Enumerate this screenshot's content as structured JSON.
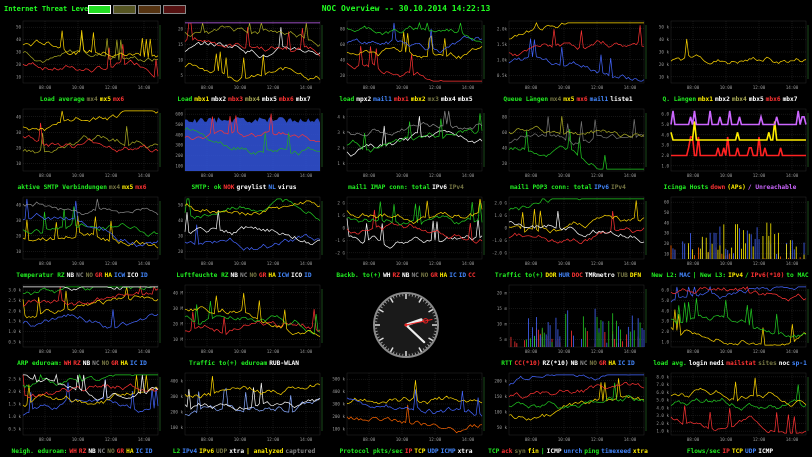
{
  "header": {
    "threat_label": "Internet Threat Level:",
    "threat_levels": [
      {
        "name": "low",
        "color": "#22dd22",
        "active": true
      },
      {
        "name": "elevated",
        "color": "#555522",
        "active": false
      },
      {
        "name": "high",
        "color": "#553311",
        "active": false
      },
      {
        "name": "severe",
        "color": "#551111",
        "active": false
      }
    ],
    "title": "NOC Overview -- 30.10.2014 14:22:13"
  },
  "time_ticks": [
    "08:00",
    "10:00",
    "12:00",
    "14:00"
  ],
  "panels": [
    {
      "id": "load-average",
      "type": "line",
      "y_ticks": [
        "50",
        "40",
        "30",
        "20",
        "10"
      ],
      "series_colors": [
        "#ff3333",
        "#aaaa22",
        "#ffd700"
      ],
      "caption": [
        {
          "t": "Load average",
          "c": "#22ee22"
        },
        {
          "t": "mx4",
          "c": "#777744"
        },
        {
          "t": "mx5",
          "c": "#ffee00"
        },
        {
          "t": "mx6",
          "c": "#ff3333"
        }
      ]
    },
    {
      "id": "load-mbx",
      "type": "line",
      "y_ticks": [
        "20",
        "15",
        "10",
        "5"
      ],
      "series_colors": [
        "#ffd700",
        "#ffffff",
        "#ff3333",
        "#aaaa22",
        "#cc66ff"
      ],
      "caption": [
        {
          "t": "Load",
          "c": "#22ee22"
        },
        {
          "t": "mbx1",
          "c": "#ffee00"
        },
        {
          "t": "mbx2",
          "c": "#ffffff"
        },
        {
          "t": "mbx3",
          "c": "#ff3333"
        },
        {
          "t": "mbx4",
          "c": "#aaaa55"
        },
        {
          "t": "mbx5",
          "c": "#ffffff"
        },
        {
          "t": "mbx6",
          "c": "#ff3333"
        },
        {
          "t": "mbx7",
          "c": "#ffffff"
        }
      ]
    },
    {
      "id": "load-mail",
      "type": "line",
      "y_ticks": [
        "80",
        "60",
        "40",
        "20"
      ],
      "series_colors": [
        "#ff3333",
        "#ffd700",
        "#4466ff",
        "#22cc22"
      ],
      "caption": [
        {
          "t": "load",
          "c": "#22ee22"
        },
        {
          "t": "mpx2",
          "c": "#ffffff"
        },
        {
          "t": "mail1",
          "c": "#4488ff"
        },
        {
          "t": "mbx1",
          "c": "#ff3333"
        },
        {
          "t": "mbx2",
          "c": "#ffee00"
        },
        {
          "t": "mx3",
          "c": "#777744"
        },
        {
          "t": "mbx4",
          "c": "#ffffff"
        },
        {
          "t": "mbx5",
          "c": "#ffffff"
        }
      ]
    },
    {
      "id": "queue-length",
      "type": "line",
      "y_ticks": [
        "2.0k",
        "1.5k",
        "1.0k",
        "0.5k"
      ],
      "series_colors": [
        "#4466ff",
        "#ff3333",
        "#ffd700"
      ],
      "caption": [
        {
          "t": "Queue Längen",
          "c": "#22ee22"
        },
        {
          "t": "mx4",
          "c": "#777744"
        },
        {
          "t": "mx5",
          "c": "#ffee00"
        },
        {
          "t": "mx6",
          "c": "#ff3333"
        },
        {
          "t": "mail1",
          "c": "#4488ff"
        },
        {
          "t": "liste1",
          "c": "#ffffff"
        }
      ]
    },
    {
      "id": "q-length-mbx",
      "type": "line",
      "y_ticks": [
        "50 k",
        "40 k",
        "30 k",
        "20 k",
        "10 k"
      ],
      "series_colors": [
        "#ffd700"
      ],
      "caption": [
        {
          "t": "Q. Längen",
          "c": "#22ee22"
        },
        {
          "t": "mbx1",
          "c": "#ffee00"
        },
        {
          "t": "mbx2",
          "c": "#ffffff"
        },
        {
          "t": "mbx4",
          "c": "#aaaa55"
        },
        {
          "t": "mbx5",
          "c": "#ffffff"
        },
        {
          "t": "mbx6",
          "c": "#ff3333"
        },
        {
          "t": "mbx7",
          "c": "#ffffff"
        }
      ]
    },
    {
      "id": "smtp-connections",
      "type": "line",
      "y_ticks": [
        "40",
        "30",
        "20",
        "10"
      ],
      "series_colors": [
        "#aaaa22",
        "#ff3333",
        "#ffd700"
      ],
      "caption": [
        {
          "t": "aktive SMTP Verbindungen",
          "c": "#22ee22"
        },
        {
          "t": "mx4",
          "c": "#777744"
        },
        {
          "t": "mx5",
          "c": "#ffee00"
        },
        {
          "t": "mx6",
          "c": "#ff3333"
        }
      ]
    },
    {
      "id": "smtp-status",
      "type": "area",
      "y_ticks": [
        "600",
        "500",
        "400",
        "300",
        "200",
        "100"
      ],
      "series_colors": [
        "#3355dd",
        "#ff3333",
        "#22aa22"
      ],
      "caption": [
        {
          "t": "SMTP: ok",
          "c": "#22ee22"
        },
        {
          "t": "NOK",
          "c": "#ff3333"
        },
        {
          "t": "greylist",
          "c": "#ffffff"
        },
        {
          "t": "NL",
          "c": "#4488ff"
        },
        {
          "t": "virus",
          "c": "#ffffff"
        }
      ]
    },
    {
      "id": "imap-conn",
      "type": "line",
      "y_ticks": [
        "4 k",
        "3 k",
        "2 k",
        "1 k"
      ],
      "series_colors": [
        "#ffffff",
        "#22cc22",
        "#888888"
      ],
      "caption": [
        {
          "t": "mail1 IMAP conn: total",
          "c": "#22ee22"
        },
        {
          "t": "IPv6",
          "c": "#ffffff"
        },
        {
          "t": "IPv4",
          "c": "#777744"
        }
      ]
    },
    {
      "id": "pop3-conn",
      "type": "line",
      "y_ticks": [
        "80",
        "60",
        "40",
        "20"
      ],
      "series_colors": [
        "#22cc22",
        "#777777",
        "#aaaa22"
      ],
      "caption": [
        {
          "t": "mail1 POP3 conn: total",
          "c": "#22ee22"
        },
        {
          "t": "IPv6",
          "c": "#4488ff"
        },
        {
          "t": "IPv4",
          "c": "#777744"
        }
      ]
    },
    {
      "id": "icinga-hosts",
      "type": "step",
      "y_ticks": [
        "6.0",
        "5.0",
        "4.0",
        "3.0",
        "2.0",
        "1.0"
      ],
      "series_colors": [
        "#ff2222",
        "#ffee00",
        "#cc66ff"
      ],
      "caption": [
        {
          "t": "Icinga Hosts",
          "c": "#22ee22"
        },
        {
          "t": "down",
          "c": "#ff3333"
        },
        {
          "t": "(APs)",
          "c": "#ffee00"
        },
        {
          "t": "/ Unreachable",
          "c": "#cc66ff"
        }
      ]
    },
    {
      "id": "temperature",
      "type": "line",
      "y_ticks": [
        "40",
        "30",
        "20",
        "10"
      ],
      "series_colors": [
        "#ffd700",
        "#22cc22",
        "#4466ff",
        "#888888"
      ],
      "caption": [
        {
          "t": "Temperatur RZ",
          "c": "#22ee22"
        },
        {
          "t": "NB",
          "c": "#ffffff"
        },
        {
          "t": "NC",
          "c": "#888888"
        },
        {
          "t": "NO",
          "c": "#777744"
        },
        {
          "t": "GR",
          "c": "#ff3333"
        },
        {
          "t": "HA",
          "c": "#ffee00"
        },
        {
          "t": "ICW",
          "c": "#4488ff"
        },
        {
          "t": "ICO",
          "c": "#ffffff"
        },
        {
          "t": "ID",
          "c": "#4488ff"
        }
      ]
    },
    {
      "id": "humidity",
      "type": "line",
      "y_ticks": [
        "50",
        "40",
        "30",
        "20"
      ],
      "series_colors": [
        "#4466ff",
        "#ffffff",
        "#22cc22",
        "#ffd700"
      ],
      "caption": [
        {
          "t": "Luftfeuchte RZ",
          "c": "#22ee22"
        },
        {
          "t": "NB",
          "c": "#ffffff"
        },
        {
          "t": "NC",
          "c": "#888888"
        },
        {
          "t": "NO",
          "c": "#777744"
        },
        {
          "t": "GR",
          "c": "#ff3333"
        },
        {
          "t": "HA",
          "c": "#ffee00"
        },
        {
          "t": "ICW",
          "c": "#4488ff"
        },
        {
          "t": "ICO",
          "c": "#ffffff"
        },
        {
          "t": "ID",
          "c": "#4488ff"
        }
      ]
    },
    {
      "id": "backbone-traffic",
      "type": "line",
      "y_ticks": [
        "2 G",
        "1 G",
        "0",
        "-1 G",
        "-2 G"
      ],
      "series_colors": [
        "#ffffff",
        "#ff3333",
        "#22cc22",
        "#ffd700"
      ],
      "caption": [
        {
          "t": "Backb. to(+)",
          "c": "#22ee22"
        },
        {
          "t": "WH",
          "c": "#ffffff"
        },
        {
          "t": "RZ",
          "c": "#ff3333"
        },
        {
          "t": "NB",
          "c": "#ffffff"
        },
        {
          "t": "NC",
          "c": "#888888"
        },
        {
          "t": "NO",
          "c": "#777744"
        },
        {
          "t": "GR",
          "c": "#ff3333"
        },
        {
          "t": "HA",
          "c": "#ffee00"
        },
        {
          "t": "IC",
          "c": "#4488ff"
        },
        {
          "t": "ID",
          "c": "#4488ff"
        },
        {
          "t": "CC",
          "c": "#ff3333"
        }
      ]
    },
    {
      "id": "traffic-dor",
      "type": "line",
      "y_ticks": [
        "2.0 G",
        "1.0 G",
        "0",
        "-1.0 G",
        "-2.0 G"
      ],
      "series_colors": [
        "#ff3333",
        "#ffd700",
        "#ffffff",
        "#22cc22"
      ],
      "caption": [
        {
          "t": "Traffic to(+)",
          "c": "#22ee22"
        },
        {
          "t": "DOR",
          "c": "#ffee00"
        },
        {
          "t": "HUR",
          "c": "#4488ff"
        },
        {
          "t": "DOC",
          "c": "#ff3333"
        },
        {
          "t": "TMRmetro",
          "c": "#ffffff"
        },
        {
          "t": "TUB",
          "c": "#777744"
        },
        {
          "t": "DFN",
          "c": "#ffee00"
        }
      ]
    },
    {
      "id": "new-l2",
      "type": "bar",
      "y_ticks": [
        "60",
        "50",
        "40",
        "30",
        "20",
        "10"
      ],
      "series_colors": [
        "#ff6600",
        "#4466ff",
        "#ffee00"
      ],
      "caption": [
        {
          "t": "New L2:",
          "c": "#22ee22"
        },
        {
          "t": "MAC",
          "c": "#4488ff"
        },
        {
          "t": "| New L3:",
          "c": "#22ee22"
        },
        {
          "t": "IPv4",
          "c": "#ffee00"
        },
        {
          "t": "/",
          "c": "#22ee22"
        },
        {
          "t": "IPv6(*10)",
          "c": "#ff3333"
        },
        {
          "t": "to MAC",
          "c": "#22ee22"
        }
      ]
    },
    {
      "id": "arp-eduroam",
      "type": "line",
      "y_ticks": [
        "3.0 k",
        "2.5 k",
        "2.0 k",
        "1.5 k",
        "1.0 k",
        "0.5 k"
      ],
      "series_colors": [
        "#4466ff",
        "#ffd700",
        "#ff3333",
        "#22cc22",
        "#ffffff"
      ],
      "caption": [
        {
          "t": "ARP eduroam:",
          "c": "#22ee22"
        },
        {
          "t": "WH",
          "c": "#ff3333"
        },
        {
          "t": "RZ",
          "c": "#ff3333"
        },
        {
          "t": "NB",
          "c": "#ffffff"
        },
        {
          "t": "NC",
          "c": "#888888"
        },
        {
          "t": "NO",
          "c": "#777744"
        },
        {
          "t": "GR",
          "c": "#ff3333"
        },
        {
          "t": "HA",
          "c": "#ffee00"
        },
        {
          "t": "IC",
          "c": "#4488ff"
        },
        {
          "t": "ID",
          "c": "#4488ff"
        }
      ]
    },
    {
      "id": "traffic-eduroam",
      "type": "line",
      "y_ticks": [
        "40 M",
        "30 M",
        "20 M",
        "10 M"
      ],
      "series_colors": [
        "#ff3333",
        "#22cc22",
        "#ffd700"
      ],
      "caption": [
        {
          "t": "Traffic to(+) eduroam",
          "c": "#22ee22"
        },
        {
          "t": "RUB-WLAN",
          "c": "#ffffff"
        }
      ]
    },
    {
      "id": "clock",
      "type": "clock",
      "hour": 14,
      "minute": 22,
      "second": 13
    },
    {
      "id": "rtt",
      "type": "bar",
      "y_ticks": [
        "20 m",
        "15 m",
        "10 m",
        "5 m"
      ],
      "series_colors": [
        "#ff3333",
        "#4466ff",
        "#22cc22"
      ],
      "caption": [
        {
          "t": "RTT",
          "c": "#22ee22"
        },
        {
          "t": "CC(*10)",
          "c": "#ff3333"
        },
        {
          "t": "RZ(*10)",
          "c": "#ffffff"
        },
        {
          "t": "NB",
          "c": "#ffffff"
        },
        {
          "t": "NC",
          "c": "#888888"
        },
        {
          "t": "NO",
          "c": "#777744"
        },
        {
          "t": "GR",
          "c": "#ff3333"
        },
        {
          "t": "HA",
          "c": "#ffee00"
        },
        {
          "t": "IC",
          "c": "#4488ff"
        },
        {
          "t": "ID",
          "c": "#4488ff"
        }
      ]
    },
    {
      "id": "load-login",
      "type": "line",
      "y_ticks": [
        "6.0",
        "5.0",
        "4.0",
        "3.0",
        "2.0",
        "1.0"
      ],
      "series_colors": [
        "#ffd700",
        "#22cc22",
        "#4466ff",
        "#ff3333"
      ],
      "caption": [
        {
          "t": "load avg.",
          "c": "#22ee22"
        },
        {
          "t": "login",
          "c": "#ffffff"
        },
        {
          "t": "nedi",
          "c": "#ffffff"
        },
        {
          "t": "mailstat",
          "c": "#ff3333"
        },
        {
          "t": "sites",
          "c": "#777744"
        },
        {
          "t": "noc",
          "c": "#ffffff"
        },
        {
          "t": "sp-1",
          "c": "#4488ff"
        }
      ]
    },
    {
      "id": "neigh-eduroam",
      "type": "line",
      "y_ticks": [
        "2.5 k",
        "2.0 k",
        "1.5 k",
        "1.0 k",
        "0.5 k"
      ],
      "series_colors": [
        "#4466ff",
        "#ffd700",
        "#ff3333",
        "#22cc22",
        "#ffffff"
      ],
      "caption": [
        {
          "t": "Neigh. eduroam:",
          "c": "#22ee22"
        },
        {
          "t": "WH",
          "c": "#ff3333"
        },
        {
          "t": "RZ",
          "c": "#ff3333"
        },
        {
          "t": "NB",
          "c": "#ffffff"
        },
        {
          "t": "NC",
          "c": "#888888"
        },
        {
          "t": "NO",
          "c": "#777744"
        },
        {
          "t": "GR",
          "c": "#ff3333"
        },
        {
          "t": "HA",
          "c": "#ffee00"
        },
        {
          "t": "IC",
          "c": "#4488ff"
        },
        {
          "t": "ID",
          "c": "#4488ff"
        }
      ]
    },
    {
      "id": "l2-traffic",
      "type": "line",
      "y_ticks": [
        "400 k",
        "300 k",
        "200 k",
        "100 k"
      ],
      "series_colors": [
        "#88aaff",
        "#ffffff",
        "#ffd700"
      ],
      "caption": [
        {
          "t": "L2",
          "c": "#22ee22"
        },
        {
          "t": "IPv4",
          "c": "#4488ff"
        },
        {
          "t": "IPv6",
          "c": "#ffee00"
        },
        {
          "t": "UDP",
          "c": "#777744"
        },
        {
          "t": "xtra",
          "c": "#ffffff"
        },
        {
          "t": "| analyzed",
          "c": "#ffee00"
        },
        {
          "t": "captured",
          "c": "#888888"
        }
      ]
    },
    {
      "id": "protocol-pkts",
      "type": "line",
      "y_ticks": [
        "500 k",
        "400 k",
        "300 k",
        "200 k",
        "100 k"
      ],
      "series_colors": [
        "#ff6600",
        "#ffd700",
        "#4466ff"
      ],
      "caption": [
        {
          "t": "Protocol pkts/sec",
          "c": "#22ee22"
        },
        {
          "t": "IP",
          "c": "#ff3333"
        },
        {
          "t": "TCP",
          "c": "#ffee00"
        },
        {
          "t": "UDP",
          "c": "#4488ff"
        },
        {
          "t": "ICMP",
          "c": "#4488ff"
        },
        {
          "t": "xtra",
          "c": "#ffffff"
        }
      ]
    },
    {
      "id": "tcp-flags",
      "type": "line",
      "y_ticks": [
        "200 k",
        "150 k",
        "100 k",
        "50 k"
      ],
      "series_colors": [
        "#ffd700",
        "#22cc22",
        "#ff3333",
        "#4466ff"
      ],
      "caption": [
        {
          "t": "TCP",
          "c": "#22ee22"
        },
        {
          "t": "ack",
          "c": "#ff3333"
        },
        {
          "t": "syn",
          "c": "#777744"
        },
        {
          "t": "fin",
          "c": "#ffee00"
        },
        {
          "t": "|",
          "c": "#22ee22"
        },
        {
          "t": "ICMP",
          "c": "#ffffff"
        },
        {
          "t": "unrch",
          "c": "#4488ff"
        },
        {
          "t": "ping",
          "c": "#22ee22"
        },
        {
          "t": "timexeed",
          "c": "#4488ff"
        },
        {
          "t": "xtra",
          "c": "#ffee00"
        }
      ]
    },
    {
      "id": "flows",
      "type": "line",
      "y_ticks": [
        "8.0 k",
        "7.0 k",
        "6.0 k",
        "5.0 k",
        "4.0 k",
        "3.0 k",
        "2.0 k",
        "1.0 k"
      ],
      "series_colors": [
        "#ff3333",
        "#22cc22",
        "#ffd700"
      ],
      "caption": [
        {
          "t": "Flows/sec",
          "c": "#22ee22"
        },
        {
          "t": "IP",
          "c": "#ff3333"
        },
        {
          "t": "TCP",
          "c": "#ffee00"
        },
        {
          "t": "UDP",
          "c": "#4488ff"
        },
        {
          "t": "ICMP",
          "c": "#ffffff"
        }
      ]
    }
  ]
}
